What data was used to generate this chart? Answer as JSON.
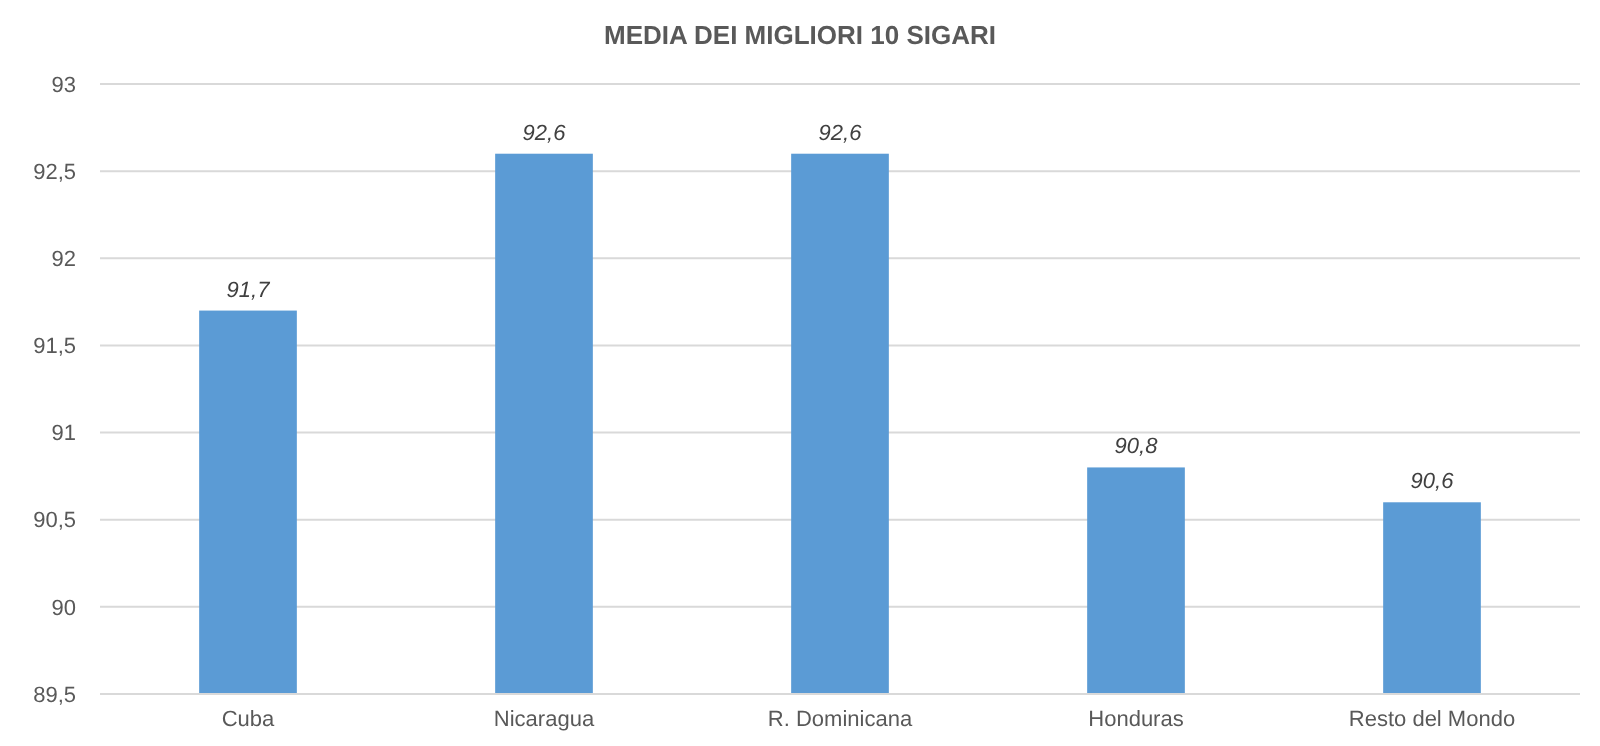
{
  "chart_data": {
    "type": "bar",
    "title": "MEDIA DEI MIGLIORI 10 SIGARI",
    "categories": [
      "Cuba",
      "Nicaragua",
      "R. Dominicana",
      "Honduras",
      "Resto del Mondo"
    ],
    "values": [
      91.7,
      92.6,
      92.6,
      90.8,
      90.6
    ],
    "value_labels": [
      "91,7",
      "92,6",
      "92,6",
      "90,8",
      "90,6"
    ],
    "color": "#5b9bd5",
    "ylim": [
      89.5,
      93
    ],
    "yticks": [
      {
        "value": 89.5,
        "label": "89,5"
      },
      {
        "value": 90,
        "label": "90"
      },
      {
        "value": 90.5,
        "label": "90,5"
      },
      {
        "value": 91,
        "label": "91"
      },
      {
        "value": 91.5,
        "label": "91,5"
      },
      {
        "value": 92,
        "label": "92"
      },
      {
        "value": 92.5,
        "label": "92,5"
      },
      {
        "value": 93,
        "label": "93"
      }
    ],
    "grid": true
  }
}
